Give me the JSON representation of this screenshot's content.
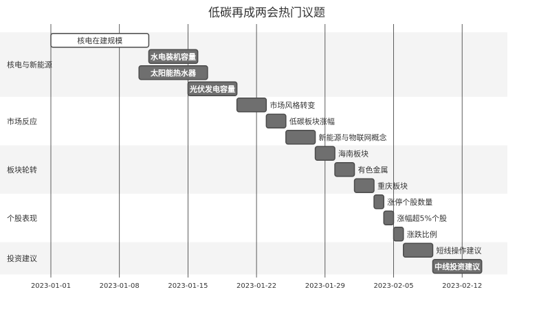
{
  "chart_data": {
    "type": "gantt",
    "title": "低碳再成两会热门议题",
    "x_ticks": [
      "2023-01-01",
      "2023-01-08",
      "2023-01-15",
      "2023-01-22",
      "2023-01-29",
      "2023-02-05",
      "2023-02-12"
    ],
    "x_range": [
      "2022-12-31",
      "2023-02-16"
    ],
    "colors": {
      "section_band_shaded": "#f4f4f4",
      "section_band_plain": "#ffffff",
      "task_fill": "#6f6f6f",
      "task_stroke": "#4a4a4a",
      "active_fill": "#ffffff",
      "active_stroke": "#4a4a4a",
      "grid": "#333333"
    },
    "sections": [
      {
        "name": "核电与新能源",
        "tasks": [
          {
            "label": "核电在建规模",
            "start": "2023-01-01",
            "end": "2023-01-11",
            "style": "active",
            "label_pos": "inside"
          },
          {
            "label": "水电装机容量",
            "start": "2023-01-11",
            "end": "2023-01-16",
            "style": "done",
            "label_pos": "inside"
          },
          {
            "label": "太阳能热水器",
            "start": "2023-01-10",
            "end": "2023-01-17",
            "style": "done",
            "label_pos": "inside"
          },
          {
            "label": "光伏发电容量",
            "start": "2023-01-15",
            "end": "2023-01-20",
            "style": "done",
            "label_pos": "inside"
          }
        ]
      },
      {
        "name": "市场反应",
        "tasks": [
          {
            "label": "市场风格转变",
            "start": "2023-01-20",
            "end": "2023-01-23",
            "style": "done",
            "label_pos": "right"
          },
          {
            "label": "低碳板块涨幅",
            "start": "2023-01-23",
            "end": "2023-01-25",
            "style": "done",
            "label_pos": "right"
          },
          {
            "label": "新能源与物联网概念",
            "start": "2023-01-25",
            "end": "2023-01-28",
            "style": "done",
            "label_pos": "right"
          }
        ]
      },
      {
        "name": "板块轮转",
        "tasks": [
          {
            "label": "海南板块",
            "start": "2023-01-28",
            "end": "2023-01-30",
            "style": "done",
            "label_pos": "right"
          },
          {
            "label": "有色金属",
            "start": "2023-01-30",
            "end": "2023-02-01",
            "style": "done",
            "label_pos": "right"
          },
          {
            "label": "重庆板块",
            "start": "2023-02-01",
            "end": "2023-02-03",
            "style": "done",
            "label_pos": "right"
          }
        ]
      },
      {
        "name": "个股表现",
        "tasks": [
          {
            "label": "涨停个股数量",
            "start": "2023-02-03",
            "end": "2023-02-04",
            "style": "done",
            "label_pos": "right"
          },
          {
            "label": "涨幅超5%个股",
            "start": "2023-02-04",
            "end": "2023-02-05",
            "style": "done",
            "label_pos": "right"
          },
          {
            "label": "涨跌比例",
            "start": "2023-02-05",
            "end": "2023-02-06",
            "style": "done",
            "label_pos": "right"
          }
        ]
      },
      {
        "name": "投资建议",
        "tasks": [
          {
            "label": "短线操作建议",
            "start": "2023-02-06",
            "end": "2023-02-09",
            "style": "done",
            "label_pos": "right"
          },
          {
            "label": "中线投资建议",
            "start": "2023-02-09",
            "end": "2023-02-14",
            "style": "done",
            "label_pos": "inside"
          }
        ]
      }
    ]
  }
}
